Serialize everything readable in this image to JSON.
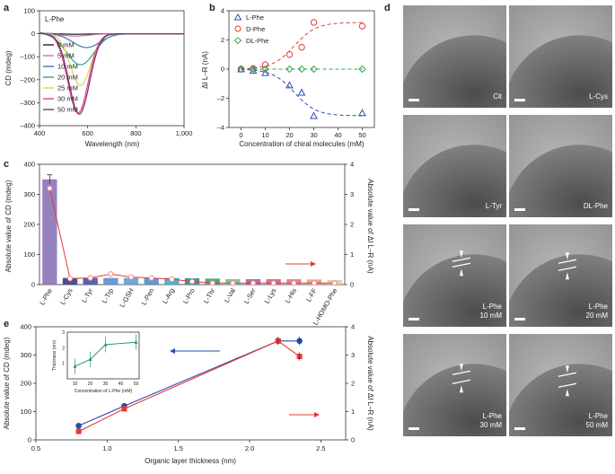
{
  "panels": {
    "a": {
      "letter": "a",
      "title": "L-Phe",
      "xlabel": "Wavelength (nm)",
      "ylabel": "CD (mdeg)",
      "xticks": [
        "400",
        "600",
        "800",
        "1,000"
      ],
      "yticks": [
        "100",
        "0",
        "–100",
        "–200",
        "–300",
        "–400"
      ],
      "legend": [
        "0 mM",
        "5 mM",
        "10 mM",
        "20 mM",
        "25 mM",
        "30 mM",
        "50 mM"
      ],
      "colors": [
        "#222222",
        "#d06fb3",
        "#4a6fb5",
        "#2aa38d",
        "#d8d84a",
        "#e0456b",
        "#7b2a86"
      ]
    },
    "b": {
      "letter": "b",
      "xlabel": "Concentration of chiral molecules (mM)",
      "ylabel": "ΔI L–R (nA)",
      "xticks": [
        "0",
        "10",
        "20",
        "30",
        "40",
        "50"
      ],
      "yticks": [
        "4",
        "2",
        "0",
        "–2",
        "–4"
      ],
      "legend": [
        "L-Phe",
        "D-Phe",
        "DL-Phe"
      ]
    },
    "c": {
      "letter": "c",
      "ylabel_left": "Absolute value of CD (mdeg)",
      "ylabel_right": "Absolute value of ΔI L–R (nA)",
      "yticks_left": [
        "0",
        "100",
        "200",
        "300",
        "400"
      ],
      "yticks_right": [
        "0",
        "1",
        "2",
        "3",
        "4"
      ]
    },
    "d": {
      "letter": "d",
      "tiles": [
        "Cit",
        "L-Cys",
        "L-Tyr",
        "DL-Phe",
        "L-Phe\n10 mM",
        "L-Phe\n20 mM",
        "L-Phe\n30 mM",
        "L-Phe\n50 mM"
      ]
    },
    "e": {
      "letter": "e",
      "xlabel": "Organic layer thickness (nm)",
      "ylabel_left": "Absolute value of CD (mdeg)",
      "ylabel_right": "Absolute value of ΔI L–R (nA)",
      "xticks": [
        "0.5",
        "1.0",
        "1.5",
        "2.0",
        "2.5"
      ],
      "yticks_left": [
        "0",
        "100",
        "200",
        "300",
        "400"
      ],
      "yticks_right": [
        "0",
        "1",
        "2",
        "3",
        "4"
      ],
      "inset_xlabel": "Concentration of L-Phe (mM)",
      "inset_ylabel": "Thickness (nm)",
      "inset_xticks": [
        "10",
        "20",
        "30",
        "40",
        "50"
      ],
      "inset_yticks": [
        "1",
        "2",
        "3"
      ]
    }
  },
  "chart_data": [
    {
      "type": "line",
      "panel": "a",
      "title": "L-Phe",
      "xlabel": "Wavelength (nm)",
      "ylabel": "CD (mdeg)",
      "xlim": [
        400,
        1000
      ],
      "ylim": [
        -400,
        100
      ],
      "series": [
        {
          "name": "0 mM",
          "min_wavelength": 550,
          "min_value": -2
        },
        {
          "name": "5 mM",
          "min_wavelength": 550,
          "min_value": -10
        },
        {
          "name": "10 mM",
          "min_wavelength": 595,
          "min_value": -60
        },
        {
          "name": "20 mM",
          "min_wavelength": 570,
          "min_value": -135
        },
        {
          "name": "25 mM",
          "min_wavelength": 570,
          "min_value": -225
        },
        {
          "name": "30 mM",
          "min_wavelength": 560,
          "min_value": -345
        },
        {
          "name": "50 mM",
          "min_wavelength": 565,
          "min_value": -350
        }
      ]
    },
    {
      "type": "scatter",
      "panel": "b",
      "xlabel": "Concentration of chiral molecules (mM)",
      "ylabel": "ΔI L–R (nA)",
      "xlim": [
        -5,
        55
      ],
      "ylim": [
        -4,
        4
      ],
      "x": [
        0,
        5,
        10,
        20,
        25,
        30,
        50
      ],
      "series": [
        {
          "name": "L-Phe",
          "values": [
            0,
            -0.1,
            -0.25,
            -1.1,
            -1.6,
            -3.2,
            -3.0
          ]
        },
        {
          "name": "D-Phe",
          "values": [
            0,
            0.05,
            0.3,
            1.0,
            1.5,
            3.2,
            2.95
          ]
        },
        {
          "name": "DL-Phe",
          "values": [
            0,
            0,
            0,
            0,
            0,
            0,
            0
          ]
        }
      ]
    },
    {
      "type": "bar",
      "panel": "c",
      "categories": [
        "L-Phe",
        "L-Cys",
        "L-Tyr",
        "L-Trp",
        "L-GSH",
        "L-Pen",
        "L-Arg",
        "L-Pro",
        "L-Thr",
        "L-Val",
        "L-Ser",
        "L-Lys",
        "L-His",
        "L-FF",
        "L-HOMO-Phe"
      ],
      "series": [
        {
          "values": [
            350,
            22,
            22,
            22,
            22,
            22,
            22,
            21,
            20,
            18,
            18,
            18,
            18,
            17,
            15
          ]
        },
        {
          "values": [
            3.2,
            0.2,
            0.22,
            0.35,
            0.25,
            0.22,
            0.18,
            0.1,
            0.05,
            0.05,
            0.05,
            0.05,
            0.05,
            0.05,
            0.05
          ]
        }
      ],
      "ylim_left": [
        0,
        400
      ],
      "ylim_right": [
        0,
        4
      ],
      "colors": [
        "#8b73b8",
        "#3a3a8c",
        "#4056a8",
        "#5d8fd0",
        "#5da0d6",
        "#4f91c7",
        "#47a6c6",
        "#2f8f8a",
        "#3aa36f",
        "#6fc08e",
        "#b55b9c",
        "#d0608c",
        "#e17a86",
        "#e59d8d",
        "#f0c1a4"
      ]
    },
    {
      "type": "line",
      "panel": "e",
      "xlabel": "Organic layer thickness (nm)",
      "ylabel": "Absolute value of CD (mdeg)",
      "xlim": [
        0.5,
        2.5
      ],
      "ylim": [
        0,
        400
      ],
      "x": [
        0.8,
        1.12,
        2.2,
        2.35
      ],
      "series": [
        {
          "values": [
            50,
            120,
            350,
            350
          ]
        },
        {
          "values": [
            30,
            110,
            350,
            295
          ]
        }
      ],
      "inset": {
        "xlabel": "Concentration of L-Phe (mM)",
        "ylabel": "Thickness (nm)",
        "xlim": [
          5,
          52
        ],
        "ylim": [
          0,
          3
        ],
        "x": [
          10,
          20,
          30,
          50
        ],
        "values": [
          0.8,
          1.25,
          2.2,
          2.35
        ]
      }
    }
  ]
}
